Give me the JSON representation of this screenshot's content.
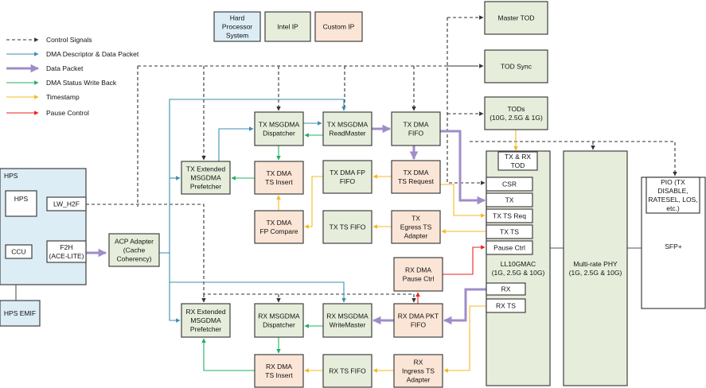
{
  "legend_keys": [
    {
      "id": "key-hps",
      "lines": [
        "Hard",
        "Processor",
        "System"
      ],
      "type": "hps"
    },
    {
      "id": "key-intel",
      "lines": [
        "Intel IP"
      ],
      "type": "intel"
    },
    {
      "id": "key-custom",
      "lines": [
        "Custom IP"
      ],
      "type": "custom"
    }
  ],
  "legend_lines": [
    {
      "id": "control",
      "label": "Control Signals",
      "color": "#333333",
      "style": "dashed"
    },
    {
      "id": "descriptor",
      "label": "DMA Descriptor & Data Packet",
      "color": "#3a8fb0",
      "style": "solid"
    },
    {
      "id": "packet",
      "label": "Data Packet",
      "color": "#a08cc8",
      "style": "thick"
    },
    {
      "id": "status",
      "label": "DMA Status Write Back",
      "color": "#22b060",
      "style": "solid"
    },
    {
      "id": "timestamp",
      "label": "Timestamp",
      "color": "#f5b820",
      "style": "solid"
    },
    {
      "id": "pause",
      "label": "Pause Control",
      "color": "#ee2020",
      "style": "solid"
    }
  ],
  "colors": {
    "hps": "#dcedf5",
    "intel": "#e6eedb",
    "custom": "#fbe5d6",
    "border": "#404040"
  },
  "blocks": [
    {
      "id": "master-tod",
      "lines": [
        "Master TOD"
      ],
      "type": "intel"
    },
    {
      "id": "tod-sync",
      "lines": [
        "TOD Sync"
      ],
      "type": "intel"
    },
    {
      "id": "tods",
      "lines": [
        "TODs",
        "(10G, 2.5G & 1G)"
      ],
      "type": "intel"
    },
    {
      "id": "tx-msgdma-dispatcher",
      "lines": [
        "TX MSGDMA",
        "Dispatcher"
      ],
      "type": "intel"
    },
    {
      "id": "tx-msgdma-readmaster",
      "lines": [
        "TX MSGDMA",
        "ReadMaster"
      ],
      "type": "intel"
    },
    {
      "id": "tx-dma-fifo",
      "lines": [
        "TX DMA",
        "FIFO"
      ],
      "type": "intel"
    },
    {
      "id": "tx-ext-prefetcher",
      "lines": [
        "TX Extended",
        "MSGDMA",
        "Prefetcher"
      ],
      "type": "intel"
    },
    {
      "id": "tx-dma-ts-insert",
      "lines": [
        "TX DMA",
        "TS Insert"
      ],
      "type": "custom"
    },
    {
      "id": "tx-dma-fp-fifo",
      "lines": [
        "TX DMA FP",
        "FIFO"
      ],
      "type": "intel"
    },
    {
      "id": "tx-dma-ts-request",
      "lines": [
        "TX DMA",
        "TS Request"
      ],
      "type": "custom"
    },
    {
      "id": "tx-dma-fp-compare",
      "lines": [
        "TX DMA",
        "FP Compare"
      ],
      "type": "custom"
    },
    {
      "id": "tx-ts-fifo",
      "lines": [
        "TX TS FIFO"
      ],
      "type": "intel"
    },
    {
      "id": "tx-egress-ts-adapter",
      "lines": [
        "TX",
        "Egress TS",
        "Adapter"
      ],
      "type": "custom"
    },
    {
      "id": "rx-dma-pause-ctrl",
      "lines": [
        "RX DMA",
        "Pause Ctrl"
      ],
      "type": "custom"
    },
    {
      "id": "rx-ext-prefetcher",
      "lines": [
        "RX Extended",
        "MSGDMA",
        "Prefetcher"
      ],
      "type": "intel"
    },
    {
      "id": "rx-msgdma-dispatcher",
      "lines": [
        "RX MSGDMA",
        "Dispatcher"
      ],
      "type": "intel"
    },
    {
      "id": "rx-msgdma-writemaster",
      "lines": [
        "RX MSGDMA",
        "WriteMaster"
      ],
      "type": "intel"
    },
    {
      "id": "rx-dma-pkt-fifo",
      "lines": [
        "RX DMA PKT",
        "FIFO"
      ],
      "type": "custom"
    },
    {
      "id": "rx-dma-ts-insert",
      "lines": [
        "RX DMA",
        "TS Insert"
      ],
      "type": "custom"
    },
    {
      "id": "rx-ts-fifo",
      "lines": [
        "RX TS FIFO"
      ],
      "type": "intel"
    },
    {
      "id": "rx-ingress-ts-adapter",
      "lines": [
        "RX",
        "Ingress TS",
        "Adapter"
      ],
      "type": "custom"
    },
    {
      "id": "acp-adapter",
      "lines": [
        "ACP Adapter",
        "(Cache",
        "Coherency)"
      ],
      "type": "intel"
    },
    {
      "id": "hps",
      "lines": [
        "HPS"
      ],
      "type": "hps",
      "align": "topleft"
    },
    {
      "id": "hps-core",
      "lines": [
        "HPS"
      ],
      "type": "white",
      "align": "top"
    },
    {
      "id": "ccu",
      "lines": [
        "CCU"
      ],
      "type": "white"
    },
    {
      "id": "lw-h2f",
      "lines": [
        "LW_H2F"
      ],
      "type": "white"
    },
    {
      "id": "f2h",
      "lines": [
        "F2H",
        "(ACE-LITE)"
      ],
      "type": "white"
    },
    {
      "id": "hps-emif",
      "lines": [
        "HPS EMIF"
      ],
      "type": "hps"
    },
    {
      "id": "ll10gmac",
      "lines": [
        "LL10GMAC",
        "(1G, 2.5G & 10G)"
      ],
      "type": "intel",
      "align": "mac"
    },
    {
      "id": "tx-rx-tod",
      "lines": [
        "TX & RX",
        "TOD"
      ],
      "type": "white"
    },
    {
      "id": "csr",
      "lines": [
        "CSR"
      ],
      "type": "white"
    },
    {
      "id": "mac-tx",
      "lines": [
        "TX"
      ],
      "type": "white"
    },
    {
      "id": "tx-ts-req",
      "lines": [
        "TX TS Req"
      ],
      "type": "white"
    },
    {
      "id": "tx-ts",
      "lines": [
        "TX TS"
      ],
      "type": "white"
    },
    {
      "id": "pause-ctrl",
      "lines": [
        "Pause Ctrl"
      ],
      "type": "white"
    },
    {
      "id": "mac-rx",
      "lines": [
        "RX"
      ],
      "type": "white"
    },
    {
      "id": "rx-ts",
      "lines": [
        "RX TS"
      ],
      "type": "white"
    },
    {
      "id": "multirate-phy",
      "lines": [
        "Multi-rate PHY",
        "(1G, 2.5G & 10G)"
      ],
      "type": "intel"
    },
    {
      "id": "sfp",
      "lines": [
        "SFP+"
      ],
      "type": "white"
    },
    {
      "id": "pio",
      "lines": [
        "PIO (TX",
        "DISABLE,",
        "RATESEL, LOS,",
        "etc.)"
      ],
      "type": "white"
    }
  ]
}
